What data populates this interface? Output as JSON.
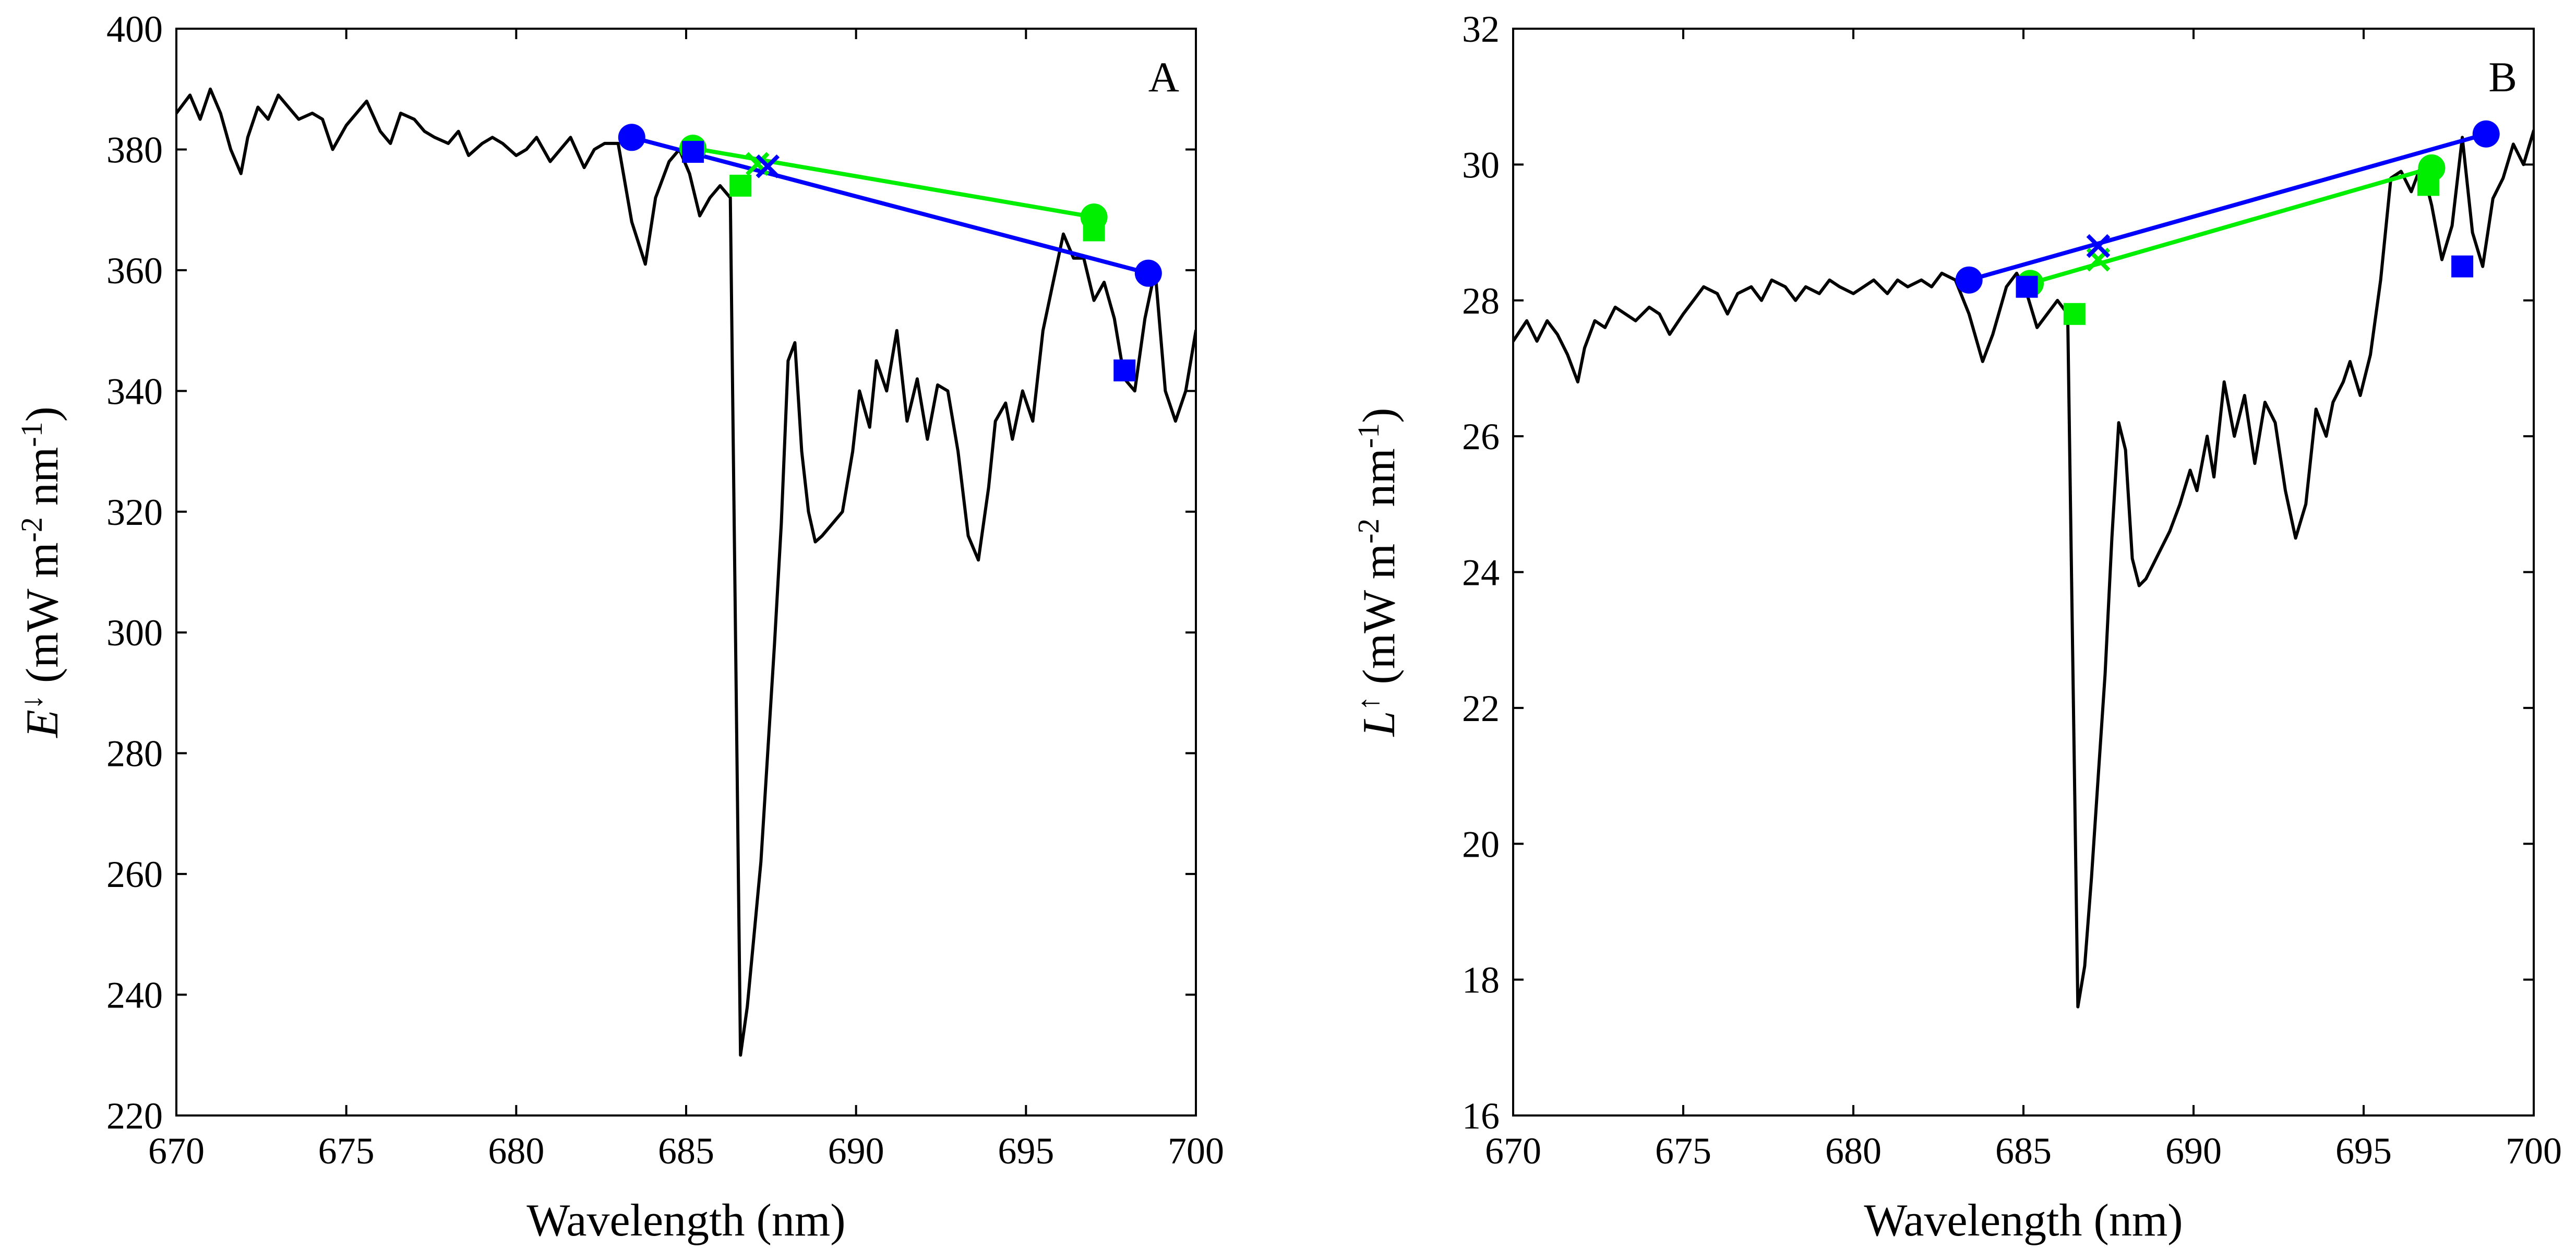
{
  "chart_data": [
    {
      "type": "line",
      "panel_label": "A",
      "xlabel": "Wavelength (nm)",
      "ylabel": {
        "main": "E",
        "sup_symbol": "↓",
        "pre": " (mW m",
        "exp1": "-2",
        "mid": " nm",
        "exp2": "-1",
        "post": ")"
      },
      "xlim": [
        670,
        700
      ],
      "ylim": [
        220,
        400
      ],
      "xticks": [
        670,
        675,
        680,
        685,
        690,
        695,
        700
      ],
      "yticks": [
        220,
        240,
        260,
        280,
        300,
        320,
        340,
        360,
        380,
        400
      ],
      "grid": false,
      "series": [
        {
          "name": "spectrum",
          "color": "#000000",
          "style": "line",
          "x": [
            670.0,
            670.4,
            670.7,
            671.0,
            671.3,
            671.6,
            671.9,
            672.1,
            672.4,
            672.7,
            673.0,
            673.3,
            673.6,
            674.0,
            674.3,
            674.6,
            675.0,
            675.3,
            675.6,
            676.0,
            676.3,
            676.6,
            677.0,
            677.3,
            677.6,
            678.0,
            678.3,
            678.6,
            679.0,
            679.3,
            679.6,
            680.0,
            680.3,
            680.6,
            681.0,
            681.3,
            681.6,
            682.0,
            682.3,
            682.6,
            683.0,
            683.4,
            683.8,
            684.1,
            684.5,
            684.8,
            685.1,
            685.4,
            685.7,
            686.0,
            686.3,
            686.6,
            686.8,
            687.0,
            687.2,
            687.4,
            687.6,
            687.8,
            688.0,
            688.2,
            688.4,
            688.6,
            688.8,
            689.0,
            689.3,
            689.6,
            689.9,
            690.1,
            690.4,
            690.6,
            690.9,
            691.2,
            691.5,
            691.8,
            692.1,
            692.4,
            692.7,
            693.0,
            693.3,
            693.6,
            693.9,
            694.1,
            694.4,
            694.6,
            694.9,
            695.2,
            695.5,
            695.8,
            696.1,
            696.4,
            696.7,
            697.0,
            697.3,
            697.6,
            697.9,
            698.2,
            698.5,
            698.8,
            699.1,
            699.4,
            699.7,
            700.0
          ],
          "y": [
            386,
            389,
            385,
            390,
            386,
            380,
            376,
            382,
            387,
            385,
            389,
            387,
            385,
            386,
            385,
            380,
            384,
            386,
            388,
            383,
            381,
            386,
            385,
            383,
            382,
            381,
            383,
            379,
            381,
            382,
            381,
            379,
            380,
            382,
            378,
            380,
            382,
            377,
            380,
            381,
            381,
            368,
            361,
            372,
            378,
            380,
            376,
            369,
            372,
            374,
            372,
            230,
            238,
            250,
            262,
            280,
            298,
            318,
            345,
            348,
            330,
            320,
            315,
            316,
            318,
            320,
            330,
            340,
            334,
            345,
            340,
            350,
            335,
            342,
            332,
            341,
            340,
            330,
            316,
            312,
            324,
            335,
            338,
            332,
            340,
            335,
            350,
            358,
            366,
            362,
            362,
            355,
            358,
            352,
            342,
            340,
            352,
            360,
            340,
            335,
            340,
            350
          ]
        },
        {
          "name": "blue fit line",
          "color": "#0000ff",
          "style": "line",
          "x": [
            683.4,
            698.6
          ],
          "y": [
            382,
            359.5
          ]
        },
        {
          "name": "green fit line",
          "color": "#00ee00",
          "style": "line",
          "x": [
            685.2,
            697.0
          ],
          "y": [
            380.2,
            368.8
          ]
        },
        {
          "name": "blue circles",
          "color": "#0000ff",
          "style": "circle",
          "x": [
            683.4,
            698.6
          ],
          "y": [
            382,
            359.5
          ]
        },
        {
          "name": "green circles",
          "color": "#00ee00",
          "style": "circle",
          "x": [
            685.2,
            697.0
          ],
          "y": [
            380.2,
            368.8
          ]
        },
        {
          "name": "blue squares",
          "color": "#0000ff",
          "style": "square",
          "x": [
            685.2,
            697.9
          ],
          "y": [
            379.6,
            343.4
          ]
        },
        {
          "name": "green squares",
          "color": "#00ee00",
          "style": "square",
          "x": [
            686.6,
            697.0
          ],
          "y": [
            374,
            366.6
          ]
        },
        {
          "name": "green cross",
          "color": "#00ee00",
          "style": "cross",
          "x": [
            687.1
          ],
          "y": [
            377.6
          ]
        },
        {
          "name": "blue cross",
          "color": "#0000ff",
          "style": "cross",
          "x": [
            687.4
          ],
          "y": [
            377.2
          ]
        }
      ]
    },
    {
      "type": "line",
      "panel_label": "B",
      "xlabel": "Wavelength (nm)",
      "ylabel": {
        "main": "L",
        "sup_symbol": "↑",
        "pre": " (mW m",
        "exp1": "-2",
        "mid": " nm",
        "exp2": "-1",
        "post": ")"
      },
      "xlim": [
        670,
        700
      ],
      "ylim": [
        16,
        32
      ],
      "xticks": [
        670,
        675,
        680,
        685,
        690,
        695,
        700
      ],
      "yticks": [
        16,
        18,
        20,
        22,
        24,
        26,
        28,
        30,
        32
      ],
      "grid": false,
      "series": [
        {
          "name": "spectrum",
          "color": "#000000",
          "style": "line",
          "x": [
            670.0,
            670.4,
            670.7,
            671.0,
            671.3,
            671.6,
            671.9,
            672.1,
            672.4,
            672.7,
            673.0,
            673.3,
            673.6,
            674.0,
            674.3,
            674.6,
            675.0,
            675.3,
            675.6,
            676.0,
            676.3,
            676.6,
            677.0,
            677.3,
            677.6,
            678.0,
            678.3,
            678.6,
            679.0,
            679.3,
            679.6,
            680.0,
            680.3,
            680.6,
            681.0,
            681.3,
            681.6,
            682.0,
            682.3,
            682.6,
            683.0,
            683.4,
            683.8,
            684.1,
            684.5,
            684.8,
            685.1,
            685.4,
            685.7,
            686.0,
            686.3,
            686.6,
            686.8,
            687.0,
            687.2,
            687.4,
            687.6,
            687.8,
            688.0,
            688.2,
            688.4,
            688.6,
            688.8,
            689.0,
            689.3,
            689.6,
            689.9,
            690.1,
            690.4,
            690.6,
            690.9,
            691.2,
            691.5,
            691.8,
            692.1,
            692.4,
            692.7,
            693.0,
            693.3,
            693.6,
            693.9,
            694.1,
            694.4,
            694.6,
            694.9,
            695.2,
            695.5,
            695.8,
            696.1,
            696.4,
            696.7,
            697.0,
            697.3,
            697.6,
            697.9,
            698.2,
            698.5,
            698.8,
            699.1,
            699.4,
            699.7,
            700.0
          ],
          "y": [
            27.4,
            27.7,
            27.4,
            27.7,
            27.5,
            27.2,
            26.8,
            27.3,
            27.7,
            27.6,
            27.9,
            27.8,
            27.7,
            27.9,
            27.8,
            27.5,
            27.8,
            28.0,
            28.2,
            28.1,
            27.8,
            28.1,
            28.2,
            28.0,
            28.3,
            28.2,
            28.0,
            28.2,
            28.1,
            28.3,
            28.2,
            28.1,
            28.2,
            28.3,
            28.1,
            28.3,
            28.2,
            28.3,
            28.2,
            28.4,
            28.3,
            27.8,
            27.1,
            27.5,
            28.2,
            28.4,
            28.1,
            27.6,
            27.8,
            28.0,
            27.8,
            17.6,
            18.2,
            19.5,
            21.0,
            22.5,
            24.5,
            26.2,
            25.8,
            24.2,
            23.8,
            23.9,
            24.1,
            24.3,
            24.6,
            25.0,
            25.5,
            25.2,
            26.0,
            25.4,
            26.8,
            26.0,
            26.6,
            25.6,
            26.5,
            26.2,
            25.2,
            24.5,
            25.0,
            26.4,
            26.0,
            26.5,
            26.8,
            27.1,
            26.6,
            27.2,
            28.3,
            29.8,
            29.9,
            29.6,
            30.0,
            29.4,
            28.6,
            29.1,
            30.4,
            29.0,
            28.5,
            29.5,
            29.8,
            30.3,
            30.0,
            30.5
          ]
        },
        {
          "name": "blue fit line",
          "color": "#0000ff",
          "style": "line",
          "x": [
            683.4,
            698.6
          ],
          "y": [
            28.3,
            30.45
          ]
        },
        {
          "name": "green fit line",
          "color": "#00ee00",
          "style": "line",
          "x": [
            685.2,
            697.0
          ],
          "y": [
            28.25,
            29.95
          ]
        },
        {
          "name": "blue circles",
          "color": "#0000ff",
          "style": "circle",
          "x": [
            683.4,
            698.6
          ],
          "y": [
            28.3,
            30.45
          ]
        },
        {
          "name": "green circles",
          "color": "#00ee00",
          "style": "circle",
          "x": [
            685.2,
            697.0
          ],
          "y": [
            28.25,
            29.95
          ]
        },
        {
          "name": "blue squares",
          "color": "#0000ff",
          "style": "square",
          "x": [
            685.1,
            697.9
          ],
          "y": [
            28.2,
            28.5
          ]
        },
        {
          "name": "green squares",
          "color": "#00ee00",
          "style": "square",
          "x": [
            686.5,
            696.9
          ],
          "y": [
            27.8,
            29.7
          ]
        },
        {
          "name": "green cross",
          "color": "#00ee00",
          "style": "cross",
          "x": [
            687.2
          ],
          "y": [
            28.6
          ]
        },
        {
          "name": "blue cross",
          "color": "#0000ff",
          "style": "cross",
          "x": [
            687.2
          ],
          "y": [
            28.8
          ]
        }
      ]
    }
  ]
}
